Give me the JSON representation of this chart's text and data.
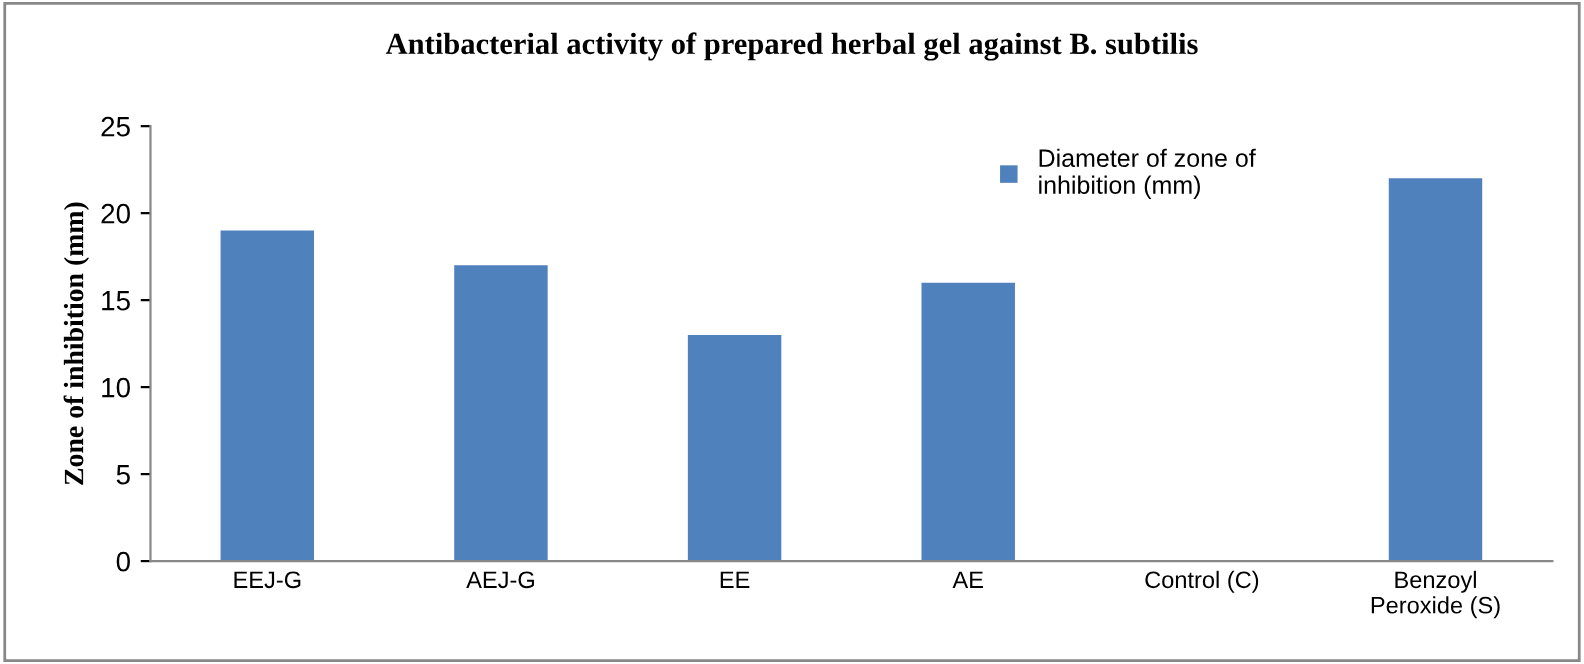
{
  "chart_data": {
    "type": "bar",
    "title": "Antibacterial activity of prepared herbal gel against B. subtilis",
    "ylabel": "Zone of inhibition (mm)",
    "categories": [
      "EEJ-G",
      "AEJ-G",
      "EE",
      "AE",
      "Control (C)",
      "Benzoyl\nPeroxide (S)"
    ],
    "series": [
      {
        "name": "Diameter of zone of\ninhibition (mm)",
        "color": "#4f81bd",
        "values": [
          19,
          17,
          13,
          16,
          0,
          22
        ]
      }
    ],
    "ylim": [
      0,
      25
    ],
    "yticks": [
      0,
      5,
      10,
      15,
      20,
      25
    ],
    "grid": false,
    "legend": "top right"
  }
}
